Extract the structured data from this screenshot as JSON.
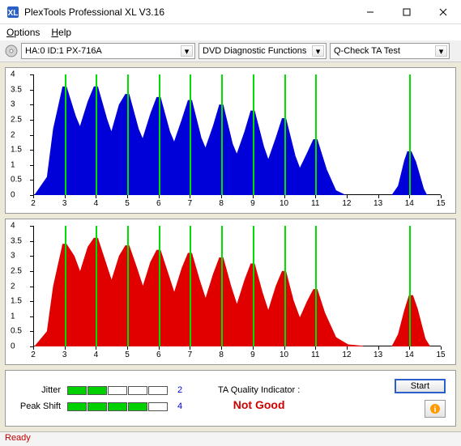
{
  "window": {
    "title": "PlexTools Professional XL V3.16",
    "menu": {
      "options": "Options",
      "help": "Help"
    }
  },
  "toolbar": {
    "drive": "HA:0 ID:1  PX-716A",
    "mode": "DVD Diagnostic Functions",
    "test": "Q-Check TA Test"
  },
  "chart": {
    "xmin": 2,
    "xmax": 15,
    "xstep": 1,
    "ymin": 0,
    "ymax": 4,
    "ystep": 0.5,
    "vline_color": "#00e000",
    "vlines_at": [
      3,
      4,
      5,
      6,
      7,
      8,
      9,
      10,
      11,
      14
    ],
    "top": {
      "fill": "#0000d8",
      "series": [
        [
          2.1,
          0
        ],
        [
          2.5,
          0.6
        ],
        [
          2.7,
          2.2
        ],
        [
          3.0,
          3.6
        ],
        [
          3.3,
          2.6
        ],
        [
          3.5,
          2.1
        ],
        [
          3.8,
          3.1
        ],
        [
          4.0,
          3.6
        ],
        [
          4.3,
          2.5
        ],
        [
          4.5,
          1.9
        ],
        [
          4.8,
          3.0
        ],
        [
          5.0,
          3.35
        ],
        [
          5.3,
          2.2
        ],
        [
          5.5,
          1.7
        ],
        [
          5.8,
          2.7
        ],
        [
          6.0,
          3.25
        ],
        [
          6.3,
          2.1
        ],
        [
          6.5,
          1.6
        ],
        [
          6.8,
          2.5
        ],
        [
          7.0,
          3.15
        ],
        [
          7.3,
          1.9
        ],
        [
          7.5,
          1.4
        ],
        [
          7.8,
          2.3
        ],
        [
          8.0,
          3.0
        ],
        [
          8.3,
          1.7
        ],
        [
          8.5,
          1.2
        ],
        [
          8.8,
          2.1
        ],
        [
          9.0,
          2.8
        ],
        [
          9.3,
          1.6
        ],
        [
          9.5,
          1.0
        ],
        [
          9.8,
          1.9
        ],
        [
          10.0,
          2.55
        ],
        [
          10.3,
          1.3
        ],
        [
          10.5,
          0.75
        ],
        [
          10.8,
          1.4
        ],
        [
          11.0,
          1.85
        ],
        [
          11.3,
          0.85
        ],
        [
          11.6,
          0.15
        ],
        [
          11.9,
          0
        ],
        [
          13.5,
          0
        ],
        [
          13.7,
          0.3
        ],
        [
          13.9,
          1.15
        ],
        [
          14.0,
          1.45
        ],
        [
          14.15,
          1.1
        ],
        [
          14.4,
          0.2
        ],
        [
          14.5,
          0
        ]
      ]
    },
    "bottom": {
      "fill": "#e00000",
      "series": [
        [
          2.1,
          0
        ],
        [
          2.5,
          0.5
        ],
        [
          2.7,
          2.0
        ],
        [
          3.0,
          3.4
        ],
        [
          3.25,
          3.0
        ],
        [
          3.5,
          2.3
        ],
        [
          3.8,
          3.3
        ],
        [
          4.0,
          3.6
        ],
        [
          4.25,
          2.8
        ],
        [
          4.5,
          2.0
        ],
        [
          4.8,
          3.0
        ],
        [
          5.0,
          3.35
        ],
        [
          5.25,
          2.6
        ],
        [
          5.5,
          1.8
        ],
        [
          5.8,
          2.8
        ],
        [
          6.0,
          3.2
        ],
        [
          6.25,
          2.4
        ],
        [
          6.5,
          1.6
        ],
        [
          6.8,
          2.6
        ],
        [
          7.0,
          3.1
        ],
        [
          7.25,
          2.2
        ],
        [
          7.5,
          1.4
        ],
        [
          7.8,
          2.4
        ],
        [
          8.0,
          2.95
        ],
        [
          8.25,
          2.0
        ],
        [
          8.5,
          1.2
        ],
        [
          8.8,
          2.2
        ],
        [
          9.0,
          2.75
        ],
        [
          9.25,
          1.8
        ],
        [
          9.5,
          1.0
        ],
        [
          9.8,
          2.0
        ],
        [
          10.0,
          2.5
        ],
        [
          10.25,
          1.5
        ],
        [
          10.5,
          0.8
        ],
        [
          10.8,
          1.5
        ],
        [
          11.0,
          1.9
        ],
        [
          11.25,
          1.1
        ],
        [
          11.6,
          0.3
        ],
        [
          12.0,
          0.05
        ],
        [
          12.5,
          0
        ],
        [
          13.5,
          0
        ],
        [
          13.7,
          0.4
        ],
        [
          13.9,
          1.2
        ],
        [
          14.05,
          1.7
        ],
        [
          14.2,
          1.25
        ],
        [
          14.45,
          0.25
        ],
        [
          14.6,
          0
        ]
      ]
    }
  },
  "metrics": {
    "jitter": {
      "label": "Jitter",
      "filled": 2,
      "total": 5,
      "value": "2"
    },
    "peakshift": {
      "label": "Peak Shift",
      "filled": 4,
      "total": 5,
      "value": "4"
    }
  },
  "quality": {
    "label": "TA Quality Indicator :",
    "value": "Not Good",
    "value_color": "#d00000"
  },
  "buttons": {
    "start": "Start"
  },
  "status": "Ready"
}
